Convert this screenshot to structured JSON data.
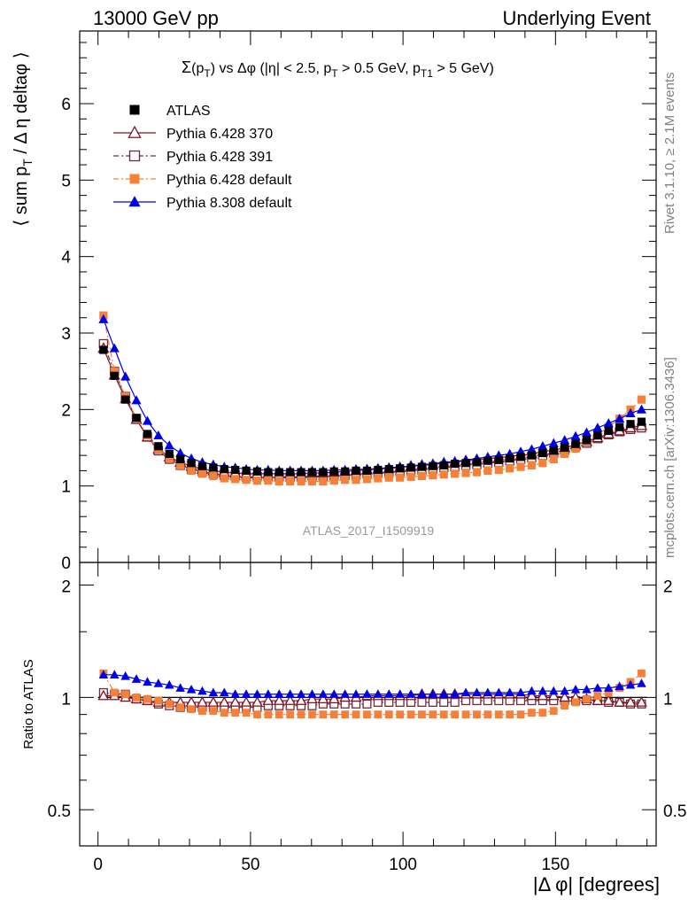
{
  "header": {
    "left": "13000 GeV pp",
    "right": "Underlying Event"
  },
  "plot_title": "Σ(pT) vs Δφ (|η| < 2.5, pT > 0.5 GeV, pT1 > 5 GeV)",
  "watermark": "ATLAS_2017_I1509919",
  "side_labels": {
    "rivet": "Rivet 3.1.10, ≥ 2.1M events",
    "mcplots": "mcplots.cern.ch [arXiv:1306.3436]"
  },
  "colors": {
    "ATLAS": "#000000",
    "Pythia 6.428 370": "#7f1020",
    "Pythia 6.428 391": "#6b2c3e",
    "Pythia 6.428 default": "#f5803a",
    "Pythia 8.308 default": "#0000e6"
  },
  "chart_data": [
    {
      "type": "scatter",
      "panel": "main",
      "title": "Σ(pT) vs Δφ (|η| < 2.5, pT > 0.5 GeV, pT1 > 5 GeV)",
      "xlabel": "",
      "ylabel": "⟨ sum pT / Δ η deltaφ ⟩",
      "xlim": [
        -6,
        183
      ],
      "ylim": [
        0,
        6.95
      ],
      "yticks": [
        0,
        1,
        2,
        3,
        4,
        5,
        6
      ],
      "legend_placement": "top-left",
      "x": [
        1.8,
        5.4,
        9.0,
        12.6,
        16.2,
        19.8,
        23.4,
        27.0,
        30.6,
        34.2,
        37.8,
        41.4,
        45.0,
        48.6,
        52.2,
        55.8,
        59.4,
        63.0,
        66.6,
        70.2,
        73.8,
        77.4,
        81.0,
        84.6,
        88.2,
        91.8,
        95.4,
        99.0,
        102.6,
        106.2,
        109.8,
        113.4,
        117.0,
        120.6,
        124.2,
        127.8,
        131.4,
        135.0,
        138.6,
        142.2,
        145.8,
        149.4,
        153.0,
        156.6,
        160.2,
        163.8,
        167.4,
        171.0,
        174.6,
        178.2
      ],
      "series": [
        {
          "name": "ATLAS",
          "marker": "filled-square",
          "values": [
            2.78,
            2.44,
            2.13,
            1.89,
            1.68,
            1.52,
            1.42,
            1.35,
            1.3,
            1.26,
            1.24,
            1.22,
            1.21,
            1.2,
            1.19,
            1.18,
            1.18,
            1.18,
            1.18,
            1.18,
            1.18,
            1.19,
            1.19,
            1.2,
            1.2,
            1.21,
            1.22,
            1.23,
            1.24,
            1.25,
            1.26,
            1.27,
            1.29,
            1.3,
            1.31,
            1.33,
            1.34,
            1.36,
            1.38,
            1.4,
            1.43,
            1.46,
            1.5,
            1.55,
            1.6,
            1.66,
            1.72,
            1.77,
            1.81,
            1.84
          ]
        },
        {
          "name": "Pythia 6.428 370",
          "marker": "open-triangle",
          "values": [
            2.8,
            2.45,
            2.14,
            1.87,
            1.64,
            1.48,
            1.38,
            1.31,
            1.26,
            1.22,
            1.2,
            1.18,
            1.17,
            1.16,
            1.16,
            1.16,
            1.16,
            1.16,
            1.16,
            1.17,
            1.17,
            1.18,
            1.19,
            1.2,
            1.21,
            1.22,
            1.23,
            1.24,
            1.26,
            1.27,
            1.28,
            1.3,
            1.31,
            1.33,
            1.34,
            1.36,
            1.37,
            1.39,
            1.4,
            1.42,
            1.45,
            1.47,
            1.5,
            1.54,
            1.58,
            1.63,
            1.68,
            1.72,
            1.76,
            1.79
          ]
        },
        {
          "name": "Pythia 6.428 391",
          "marker": "open-square",
          "values": [
            2.86,
            2.5,
            2.17,
            1.88,
            1.64,
            1.46,
            1.35,
            1.27,
            1.22,
            1.19,
            1.16,
            1.14,
            1.13,
            1.12,
            1.12,
            1.12,
            1.12,
            1.12,
            1.12,
            1.13,
            1.13,
            1.14,
            1.14,
            1.15,
            1.16,
            1.17,
            1.18,
            1.19,
            1.2,
            1.21,
            1.22,
            1.24,
            1.25,
            1.27,
            1.28,
            1.3,
            1.31,
            1.33,
            1.35,
            1.37,
            1.4,
            1.43,
            1.47,
            1.52,
            1.56,
            1.62,
            1.67,
            1.71,
            1.74,
            1.76
          ]
        },
        {
          "name": "Pythia 6.428 default",
          "marker": "filled-square",
          "values": [
            3.23,
            2.5,
            2.17,
            1.89,
            1.66,
            1.48,
            1.36,
            1.27,
            1.2,
            1.16,
            1.13,
            1.1,
            1.09,
            1.08,
            1.07,
            1.07,
            1.06,
            1.06,
            1.06,
            1.06,
            1.06,
            1.07,
            1.08,
            1.08,
            1.09,
            1.1,
            1.11,
            1.11,
            1.12,
            1.13,
            1.14,
            1.15,
            1.16,
            1.17,
            1.18,
            1.2,
            1.21,
            1.23,
            1.25,
            1.27,
            1.3,
            1.35,
            1.42,
            1.49,
            1.58,
            1.67,
            1.77,
            1.88,
            2.0,
            2.13
          ]
        },
        {
          "name": "Pythia 8.308 default",
          "marker": "filled-triangle",
          "values": [
            3.18,
            2.8,
            2.43,
            2.12,
            1.85,
            1.66,
            1.53,
            1.43,
            1.36,
            1.31,
            1.28,
            1.25,
            1.24,
            1.22,
            1.21,
            1.21,
            1.2,
            1.2,
            1.2,
            1.2,
            1.2,
            1.21,
            1.21,
            1.22,
            1.22,
            1.23,
            1.24,
            1.25,
            1.26,
            1.28,
            1.29,
            1.31,
            1.32,
            1.34,
            1.36,
            1.38,
            1.4,
            1.42,
            1.45,
            1.48,
            1.52,
            1.56,
            1.6,
            1.65,
            1.7,
            1.76,
            1.82,
            1.88,
            1.95,
            2.0
          ]
        }
      ]
    },
    {
      "type": "scatter",
      "panel": "ratio",
      "xlabel": "|Δ φ| [degrees]",
      "ylabel": "Ratio to ATLAS",
      "xlim": [
        -6,
        183
      ],
      "ylim": [
        0.4,
        2.3
      ],
      "ylog": true,
      "yticks": [
        0.5,
        1,
        2
      ],
      "xticks": [
        0,
        50,
        100,
        150
      ],
      "x": [
        1.8,
        5.4,
        9.0,
        12.6,
        16.2,
        19.8,
        23.4,
        27.0,
        30.6,
        34.2,
        37.8,
        41.4,
        45.0,
        48.6,
        52.2,
        55.8,
        59.4,
        63.0,
        66.6,
        70.2,
        73.8,
        77.4,
        81.0,
        84.6,
        88.2,
        91.8,
        95.4,
        99.0,
        102.6,
        106.2,
        109.8,
        113.4,
        117.0,
        120.6,
        124.2,
        127.8,
        131.4,
        135.0,
        138.6,
        142.2,
        145.8,
        149.4,
        153.0,
        156.6,
        160.2,
        163.8,
        167.4,
        171.0,
        174.6,
        178.2
      ],
      "series": [
        {
          "name": "Pythia 6.428 370",
          "marker": "open-triangle",
          "values": [
            1.01,
            1.01,
            1.0,
            0.99,
            0.98,
            0.97,
            0.97,
            0.97,
            0.97,
            0.97,
            0.97,
            0.97,
            0.97,
            0.97,
            0.97,
            0.98,
            0.98,
            0.98,
            0.98,
            0.99,
            0.99,
            0.99,
            1.0,
            1.0,
            1.01,
            1.01,
            1.01,
            1.01,
            1.01,
            1.02,
            1.02,
            1.02,
            1.02,
            1.02,
            1.02,
            1.02,
            1.02,
            1.02,
            1.02,
            1.01,
            1.01,
            1.01,
            1.0,
            1.0,
            0.99,
            0.98,
            0.98,
            0.97,
            0.97,
            0.97
          ]
        },
        {
          "name": "Pythia 6.428 391",
          "marker": "open-square",
          "values": [
            1.03,
            1.02,
            1.02,
            0.99,
            0.98,
            0.96,
            0.95,
            0.94,
            0.94,
            0.94,
            0.94,
            0.94,
            0.94,
            0.94,
            0.94,
            0.95,
            0.95,
            0.95,
            0.95,
            0.95,
            0.96,
            0.96,
            0.96,
            0.96,
            0.96,
            0.97,
            0.97,
            0.97,
            0.97,
            0.97,
            0.97,
            0.97,
            0.97,
            0.98,
            0.98,
            0.98,
            0.98,
            0.98,
            0.98,
            0.98,
            0.98,
            0.98,
            0.98,
            0.98,
            0.98,
            0.98,
            0.97,
            0.97,
            0.96,
            0.96
          ]
        },
        {
          "name": "Pythia 6.428 default",
          "marker": "filled-square",
          "values": [
            1.16,
            1.03,
            1.02,
            1.0,
            0.99,
            0.98,
            0.96,
            0.94,
            0.93,
            0.92,
            0.92,
            0.91,
            0.91,
            0.91,
            0.9,
            0.9,
            0.9,
            0.9,
            0.9,
            0.9,
            0.9,
            0.9,
            0.9,
            0.9,
            0.9,
            0.9,
            0.9,
            0.9,
            0.9,
            0.9,
            0.9,
            0.9,
            0.9,
            0.9,
            0.9,
            0.9,
            0.9,
            0.9,
            0.9,
            0.91,
            0.91,
            0.92,
            0.95,
            0.97,
            0.99,
            1.01,
            1.03,
            1.06,
            1.1,
            1.16
          ]
        },
        {
          "name": "Pythia 8.308 default",
          "marker": "filled-triangle",
          "values": [
            1.15,
            1.15,
            1.14,
            1.12,
            1.1,
            1.09,
            1.08,
            1.06,
            1.05,
            1.04,
            1.03,
            1.03,
            1.02,
            1.02,
            1.02,
            1.02,
            1.02,
            1.02,
            1.02,
            1.02,
            1.02,
            1.02,
            1.02,
            1.02,
            1.02,
            1.02,
            1.02,
            1.02,
            1.02,
            1.02,
            1.02,
            1.02,
            1.02,
            1.03,
            1.03,
            1.03,
            1.03,
            1.03,
            1.03,
            1.04,
            1.04,
            1.04,
            1.04,
            1.05,
            1.05,
            1.06,
            1.06,
            1.07,
            1.08,
            1.09
          ]
        }
      ]
    }
  ]
}
